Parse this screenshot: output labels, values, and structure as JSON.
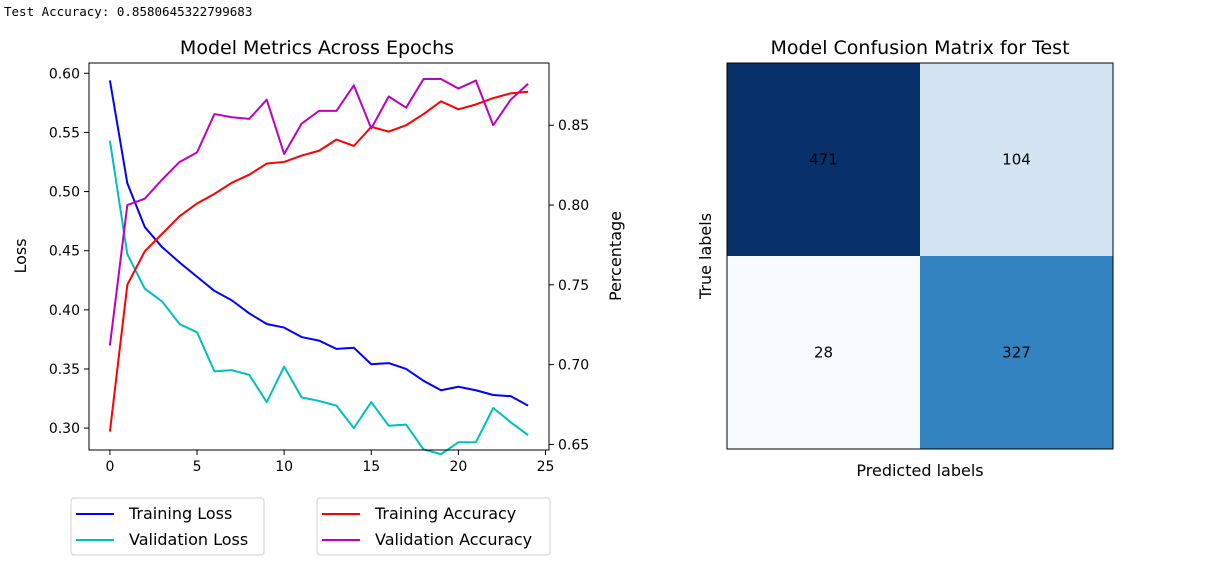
{
  "output_line": "Test Accuracy: 0.8580645322799683",
  "chart_data": [
    {
      "type": "line",
      "title": "Model Metrics Across Epochs",
      "xlabel": "",
      "ylabel": "Loss",
      "y2label": "Percentage",
      "xlim": [
        -1.2,
        25.2
      ],
      "ylim": [
        0.2815,
        0.6087
      ],
      "y2lim": [
        0.6465,
        0.889
      ],
      "xticks": [
        0,
        5,
        10,
        15,
        20,
        25
      ],
      "yticks": [
        0.3,
        0.35,
        0.4,
        0.45,
        0.5,
        0.55,
        0.6
      ],
      "y2ticks": [
        0.65,
        0.7,
        0.75,
        0.8,
        0.85
      ],
      "x": [
        0,
        1,
        2,
        3,
        4,
        5,
        6,
        7,
        8,
        9,
        10,
        11,
        12,
        13,
        14,
        15,
        16,
        17,
        18,
        19,
        20,
        21,
        22,
        23,
        24
      ],
      "series": [
        {
          "name": "Training Loss",
          "axis": "left",
          "color": "#0000ff",
          "values": [
            0.594,
            0.507,
            0.47,
            0.453,
            0.44,
            0.428,
            0.416,
            0.408,
            0.397,
            0.388,
            0.385,
            0.377,
            0.374,
            0.367,
            0.368,
            0.354,
            0.355,
            0.35,
            0.34,
            0.332,
            0.335,
            0.332,
            0.328,
            0.327,
            0.319
          ]
        },
        {
          "name": "Validation Loss",
          "axis": "left",
          "color": "#00bfbf",
          "values": [
            0.543,
            0.447,
            0.418,
            0.407,
            0.388,
            0.381,
            0.348,
            0.349,
            0.345,
            0.322,
            0.352,
            0.326,
            0.323,
            0.319,
            0.3,
            0.322,
            0.302,
            0.303,
            0.282,
            0.278,
            0.288,
            0.288,
            0.317,
            0.305,
            0.294
          ]
        },
        {
          "name": "Training Accuracy",
          "axis": "right",
          "color": "#ff0000",
          "values": [
            0.658,
            0.75,
            0.771,
            0.782,
            0.793,
            0.801,
            0.807,
            0.814,
            0.819,
            0.826,
            0.827,
            0.831,
            0.834,
            0.841,
            0.837,
            0.849,
            0.846,
            0.85,
            0.857,
            0.865,
            0.86,
            0.863,
            0.867,
            0.87,
            0.871
          ]
        },
        {
          "name": "Validation Accuracy",
          "axis": "right",
          "color": "#bf00bf",
          "values": [
            0.712,
            0.8,
            0.804,
            0.816,
            0.827,
            0.833,
            0.857,
            0.855,
            0.854,
            0.866,
            0.832,
            0.851,
            0.859,
            0.859,
            0.875,
            0.848,
            0.868,
            0.861,
            0.879,
            0.879,
            0.873,
            0.878,
            0.85,
            0.866,
            0.876
          ]
        }
      ],
      "legends": [
        {
          "placement": "below-left",
          "entries": [
            "Training Loss",
            "Validation Loss"
          ]
        },
        {
          "placement": "below-right",
          "entries": [
            "Training Accuracy",
            "Validation Accuracy"
          ]
        }
      ]
    },
    {
      "type": "heatmap",
      "title": "Model Confusion Matrix for Test",
      "xlabel": "Predicted labels",
      "ylabel": "True labels",
      "colormap": "Blues",
      "matrix": [
        [
          471,
          104
        ],
        [
          28,
          327
        ]
      ],
      "cell_colors": [
        [
          "#08306b",
          "#d4e4f3"
        ],
        [
          "#f7fbff",
          "#3383c0"
        ]
      ],
      "text_colors": [
        [
          "#000000",
          "#000000"
        ],
        [
          "#000000",
          "#000000"
        ]
      ]
    }
  ]
}
